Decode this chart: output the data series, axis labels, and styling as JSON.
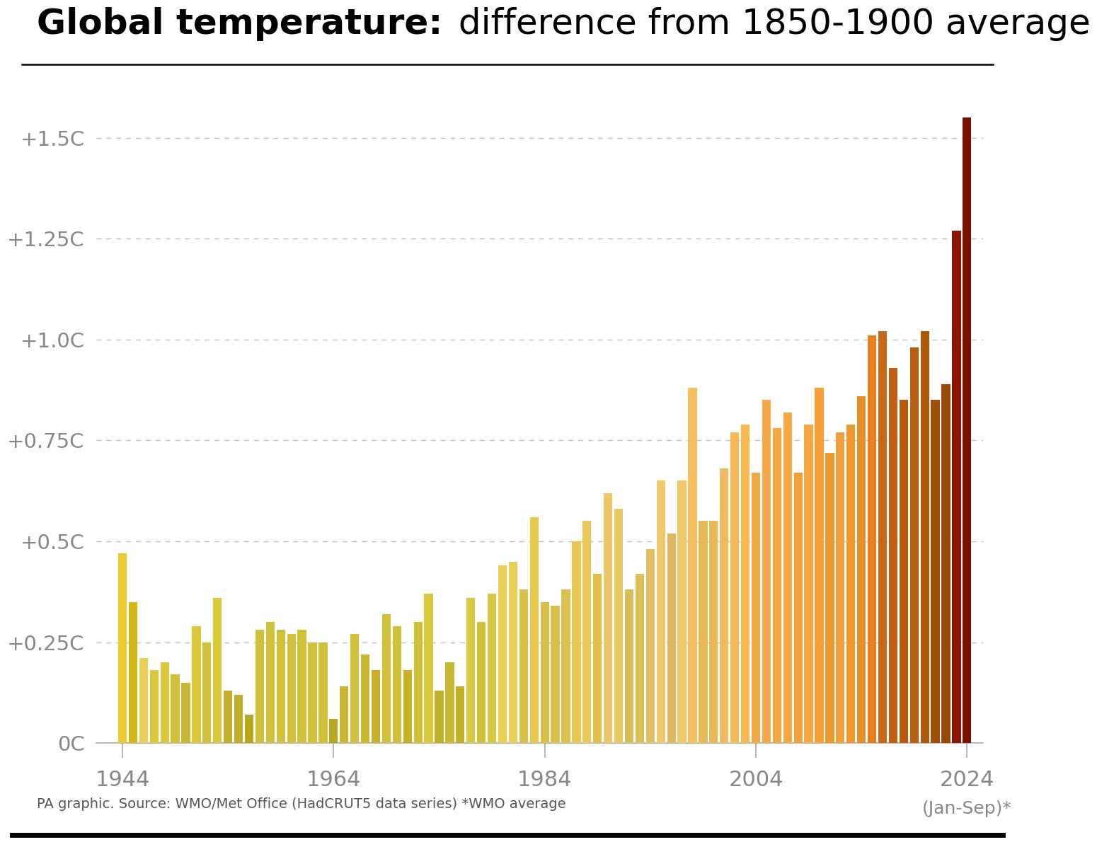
{
  "title_bold": "Global temperature:",
  "title_regular": " difference from 1850-1900 average",
  "source": "PA graphic. Source: WMO/Met Office (HadCRUT5 data series) *WMO average",
  "years": [
    1944,
    1945,
    1946,
    1947,
    1948,
    1949,
    1950,
    1951,
    1952,
    1953,
    1954,
    1955,
    1956,
    1957,
    1958,
    1959,
    1960,
    1961,
    1962,
    1963,
    1964,
    1965,
    1966,
    1967,
    1968,
    1969,
    1970,
    1971,
    1972,
    1973,
    1974,
    1975,
    1976,
    1977,
    1978,
    1979,
    1980,
    1981,
    1982,
    1983,
    1984,
    1985,
    1986,
    1987,
    1988,
    1989,
    1990,
    1991,
    1992,
    1993,
    1994,
    1995,
    1996,
    1997,
    1998,
    1999,
    2000,
    2001,
    2002,
    2003,
    2004,
    2005,
    2006,
    2007,
    2008,
    2009,
    2010,
    2011,
    2012,
    2013,
    2014,
    2015,
    2016,
    2017,
    2018,
    2019,
    2020,
    2021,
    2022,
    2023,
    2024
  ],
  "values": [
    0.47,
    0.35,
    0.21,
    0.18,
    0.2,
    0.17,
    0.15,
    0.29,
    0.25,
    0.36,
    0.13,
    0.12,
    0.07,
    0.28,
    0.3,
    0.28,
    0.27,
    0.28,
    0.25,
    0.25,
    0.06,
    0.14,
    0.27,
    0.22,
    0.18,
    0.32,
    0.29,
    0.18,
    0.3,
    0.37,
    0.13,
    0.2,
    0.14,
    0.36,
    0.3,
    0.37,
    0.44,
    0.45,
    0.38,
    0.56,
    0.35,
    0.34,
    0.38,
    0.5,
    0.55,
    0.42,
    0.62,
    0.58,
    0.38,
    0.42,
    0.48,
    0.65,
    0.52,
    0.65,
    0.88,
    0.55,
    0.55,
    0.68,
    0.77,
    0.79,
    0.67,
    0.85,
    0.78,
    0.82,
    0.67,
    0.79,
    0.88,
    0.72,
    0.77,
    0.79,
    0.86,
    1.01,
    1.02,
    0.93,
    0.85,
    0.98,
    1.02,
    0.85,
    0.89,
    1.27,
    1.55
  ],
  "colors": [
    "#e8cc2a",
    "#d4b818",
    "#e8d055",
    "#d8c83a",
    "#d8c83a",
    "#d0c03a",
    "#c8b832",
    "#d8c83a",
    "#d0c03a",
    "#d8c83a",
    "#c0b02a",
    "#c0b02a",
    "#b8a820",
    "#d0c03a",
    "#d0c03a",
    "#d0c03a",
    "#d0c03a",
    "#d0c03a",
    "#d0c03a",
    "#d0c03a",
    "#b8a820",
    "#c8b832",
    "#d0c03a",
    "#c8b832",
    "#c8b02a",
    "#d0c03a",
    "#d0c03a",
    "#c8b02a",
    "#d0c03a",
    "#d8c83a",
    "#c0b02a",
    "#c8b832",
    "#c0b02a",
    "#d8c842",
    "#d0c03a",
    "#d8c842",
    "#e8d055",
    "#e8d055",
    "#d8c04a",
    "#e8c84a",
    "#d8c04a",
    "#d8c04a",
    "#dcc052",
    "#e8c852",
    "#ecc858",
    "#e0c048",
    "#eec868",
    "#e8c860",
    "#d8c058",
    "#dcc058",
    "#e0c060",
    "#f0c868",
    "#e0b860",
    "#f0c868",
    "#f5c060",
    "#e8b855",
    "#e8b855",
    "#f0b860",
    "#f8b858",
    "#f8b850",
    "#f0a848",
    "#f8a848",
    "#f0a840",
    "#f8a840",
    "#f0a038",
    "#f8a840",
    "#f8a038",
    "#f09830",
    "#f0a038",
    "#f09830",
    "#e89028",
    "#e88020",
    "#c86818",
    "#c06010",
    "#b85808",
    "#b86010",
    "#b05808",
    "#a05008",
    "#9a4808",
    "#8b1500",
    "#7a1200"
  ],
  "yticks": [
    0,
    0.25,
    0.5,
    0.75,
    1.0,
    1.25,
    1.5
  ],
  "ytick_labels": [
    "0C",
    "+0.25C",
    "+0.5C",
    "+0.75C",
    "+1.0C",
    "+1.25C",
    "+1.5C"
  ],
  "xtick_positions": [
    1944,
    1964,
    1984,
    2004,
    2024
  ],
  "xtick_labels": [
    "1944",
    "1964",
    "1984",
    "2004",
    "2024"
  ],
  "ylim": [
    0,
    1.65
  ],
  "xlim_left": 1941.5,
  "xlim_right": 2025.5,
  "background_color": "#ffffff",
  "grid_color": "#c0c0c0",
  "axis_color": "#aaaaaa",
  "tick_label_color": "#888888",
  "source_text_color": "#555555",
  "title_fontsize": 36,
  "ytick_fontsize": 21,
  "xtick_fontsize": 22,
  "source_fontsize": 14,
  "jan_sep_fontsize": 18
}
